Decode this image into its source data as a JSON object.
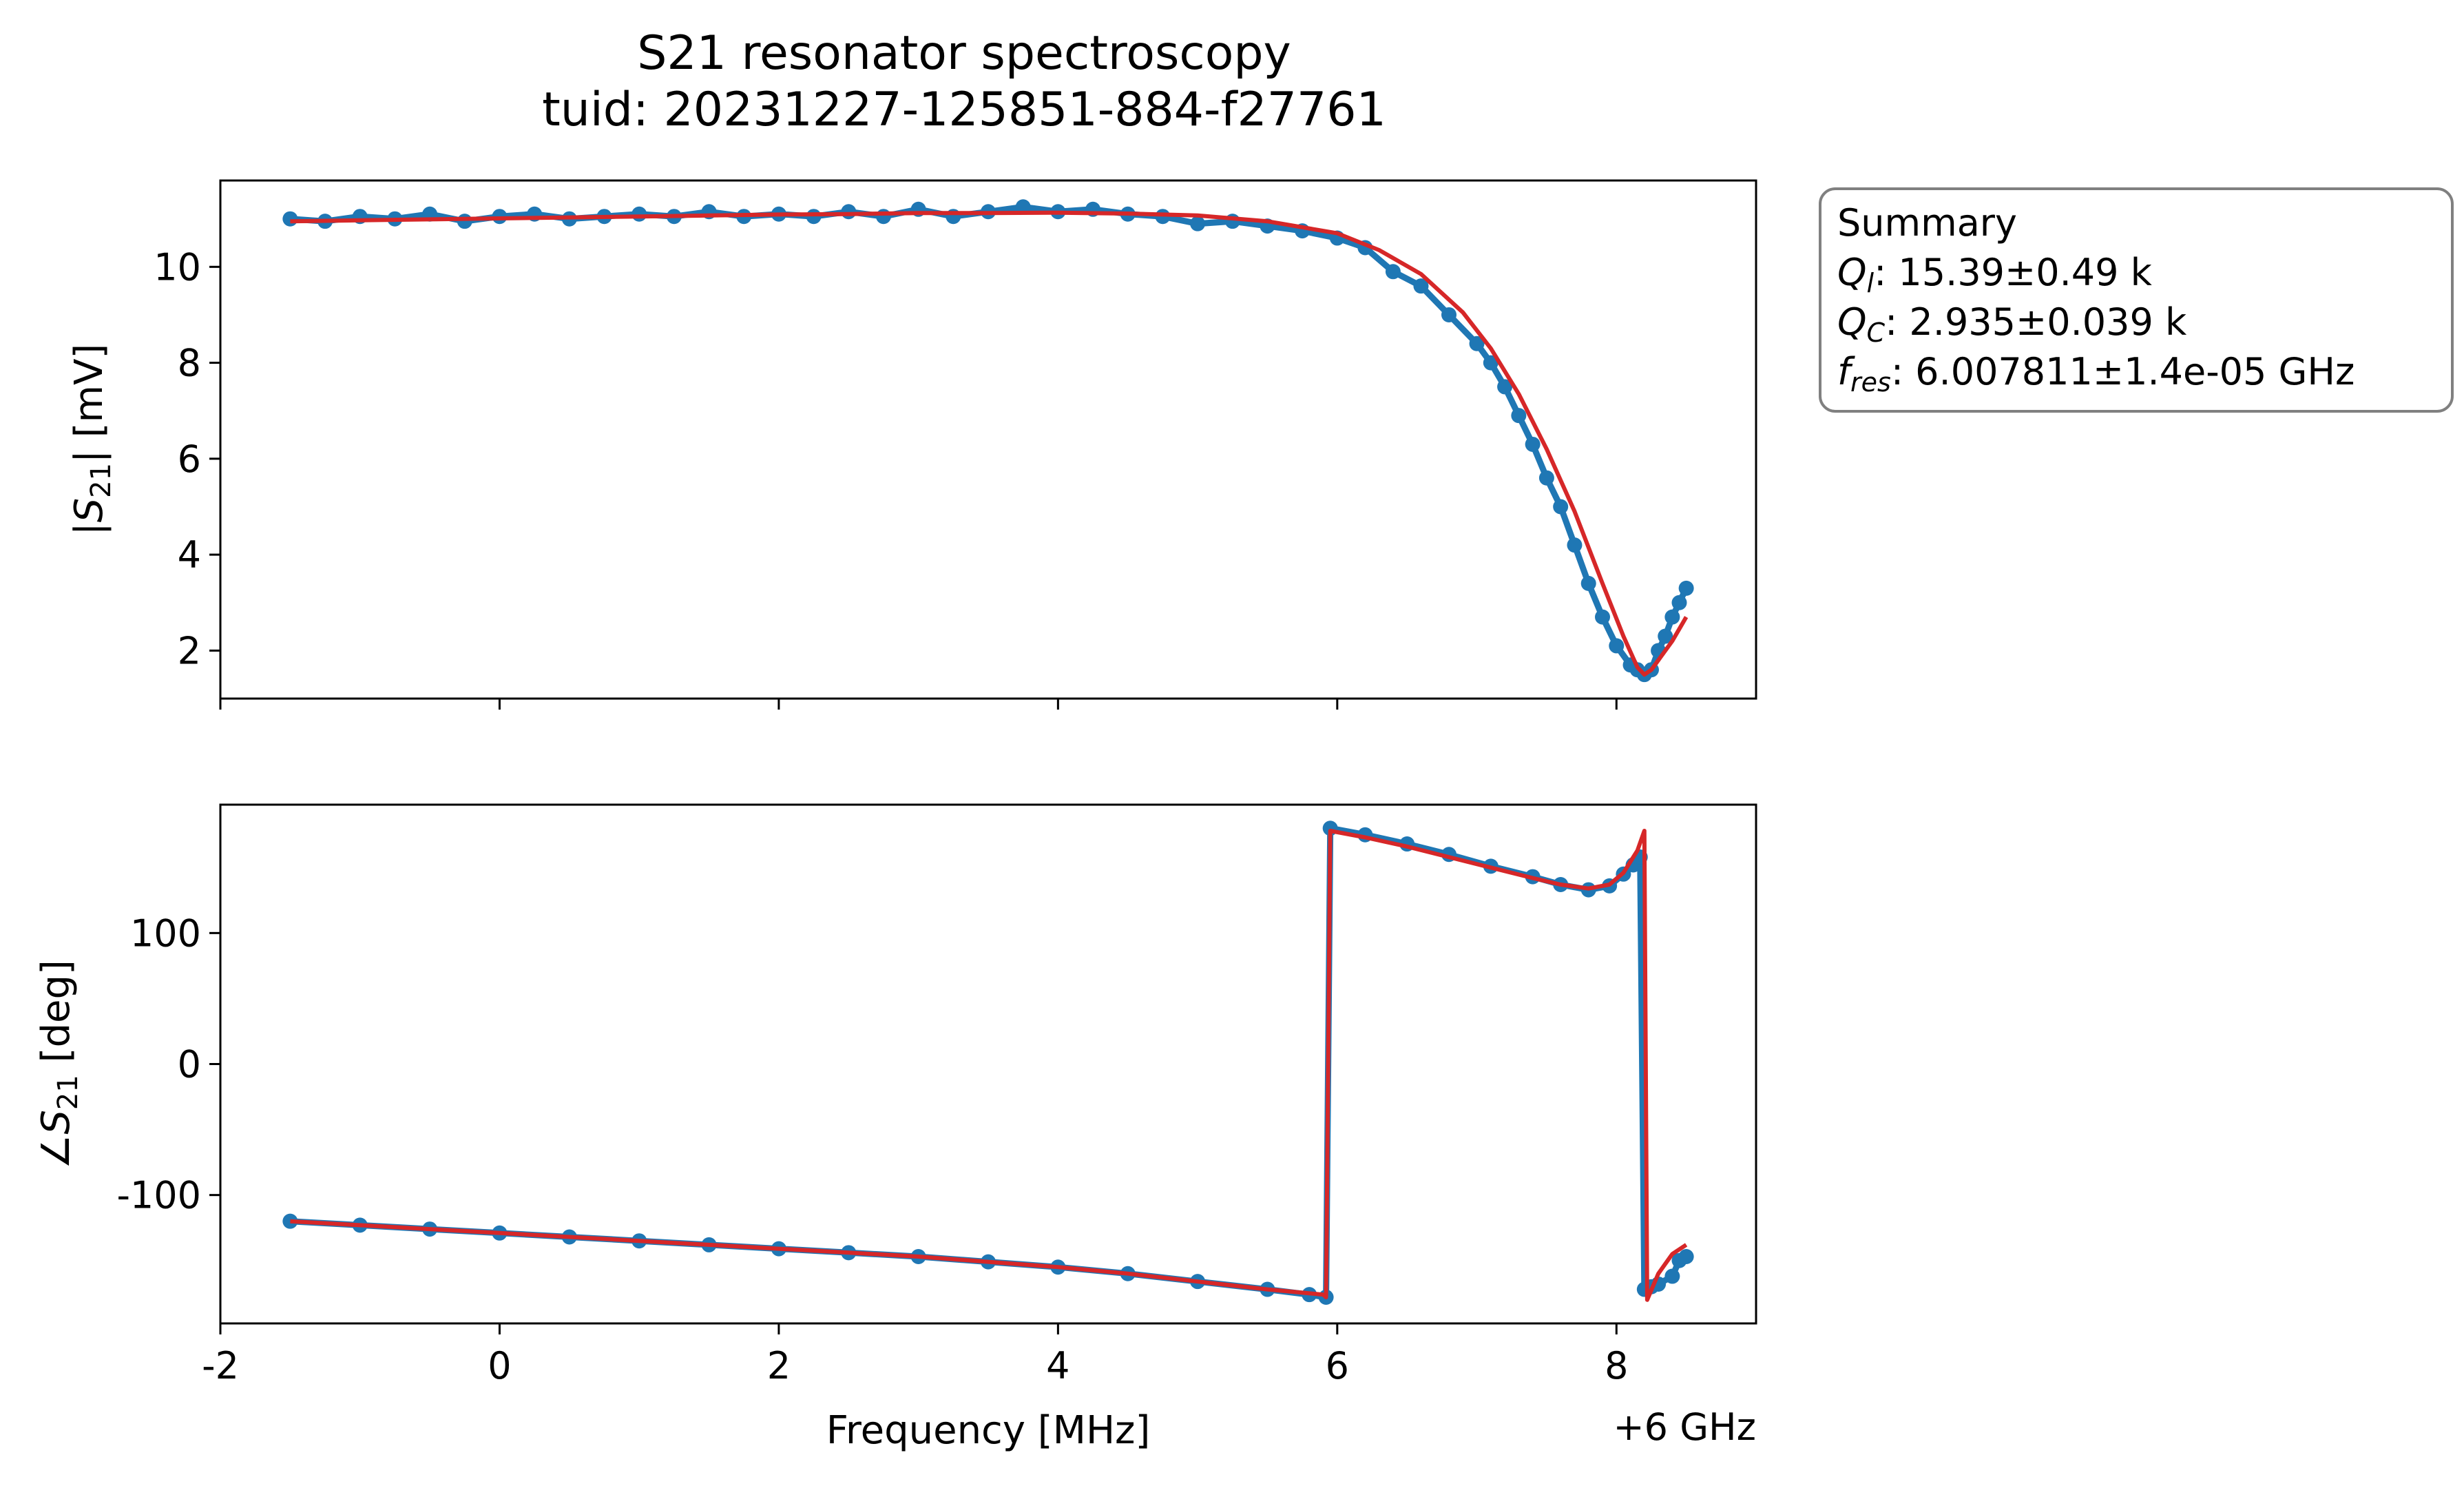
{
  "figure": {
    "title_line1": "S21 resonator spectroscopy",
    "title_line2": "tuid: 20231227-125851-884-f27761",
    "offset_label": "+6 GHz"
  },
  "summary": {
    "heading": "Summary",
    "ql_symbol": "Q",
    "ql_sub": "l",
    "ql_value": ": 15.39±0.49 k",
    "qc_symbol": "Q",
    "qc_sub": "C",
    "qc_value": ": 2.935±0.039 k",
    "fres_symbol": "f",
    "fres_sub": "res",
    "fres_value": ": 6.007811±1.4e-05 GHz"
  },
  "chart_data": [
    {
      "type": "scatter",
      "xlabel": "",
      "ylabel": "|S21| [mV]",
      "xlim": [
        -2,
        9
      ],
      "ylim": [
        1,
        11.8
      ],
      "xticks": [
        "-2",
        "0",
        "2",
        "4",
        "6",
        "8"
      ],
      "yticks": [
        "2",
        "4",
        "6",
        "8",
        "10"
      ],
      "ytick_values": [
        2,
        4,
        6,
        8,
        10
      ],
      "xticklabels_visible": false,
      "series": [
        {
          "style": "markers-with-line",
          "color": "#1f77b4",
          "x": [
            -1.5,
            -1.25,
            -1.0,
            -0.75,
            -0.5,
            -0.25,
            0.0,
            0.25,
            0.5,
            0.75,
            1.0,
            1.25,
            1.5,
            1.75,
            2.0,
            2.25,
            2.5,
            2.75,
            3.0,
            3.25,
            3.5,
            3.75,
            4.0,
            4.25,
            4.5,
            4.75,
            5.0,
            5.25,
            5.5,
            5.75,
            6.0,
            6.2,
            6.4,
            6.6,
            6.8,
            7.0,
            7.1,
            7.2,
            7.3,
            7.4,
            7.5,
            7.6,
            7.7,
            7.8,
            7.9,
            8.0,
            8.1,
            8.15,
            8.2,
            8.25,
            8.3,
            8.35,
            8.4,
            8.45,
            8.5
          ],
          "y": [
            11.0,
            10.95,
            11.05,
            11.0,
            11.1,
            10.95,
            11.05,
            11.1,
            11.0,
            11.05,
            11.1,
            11.05,
            11.15,
            11.05,
            11.1,
            11.05,
            11.15,
            11.05,
            11.2,
            11.05,
            11.15,
            11.25,
            11.15,
            11.2,
            11.1,
            11.05,
            10.9,
            10.95,
            10.85,
            10.75,
            10.6,
            10.4,
            9.9,
            9.6,
            9.0,
            8.4,
            8.0,
            7.5,
            6.9,
            6.3,
            5.6,
            5.0,
            4.2,
            3.4,
            2.7,
            2.1,
            1.7,
            1.6,
            1.5,
            1.6,
            2.0,
            2.3,
            2.7,
            3.0,
            3.3
          ]
        },
        {
          "style": "fit-line",
          "color": "#d62728",
          "x": [
            -1.5,
            -1.0,
            -0.5,
            0.0,
            0.5,
            1.0,
            1.5,
            2.0,
            2.5,
            3.0,
            3.5,
            4.0,
            4.5,
            5.0,
            5.5,
            6.0,
            6.3,
            6.6,
            6.9,
            7.1,
            7.3,
            7.5,
            7.7,
            7.9,
            8.05,
            8.15,
            8.2,
            8.25,
            8.3,
            8.4,
            8.5
          ],
          "y": [
            10.95,
            10.97,
            10.99,
            11.01,
            11.03,
            11.05,
            11.07,
            11.09,
            11.1,
            11.12,
            11.12,
            11.13,
            11.11,
            11.07,
            10.95,
            10.7,
            10.35,
            9.85,
            9.05,
            8.3,
            7.35,
            6.2,
            4.9,
            3.4,
            2.3,
            1.65,
            1.5,
            1.6,
            1.8,
            2.2,
            2.7
          ]
        }
      ]
    },
    {
      "type": "scatter",
      "xlabel": "Frequency [MHz]",
      "ylabel": "∠S21 [deg]",
      "xlim": [
        -2,
        9
      ],
      "ylim": [
        -198,
        198
      ],
      "xticks": [
        "-2",
        "0",
        "2",
        "4",
        "6",
        "8"
      ],
      "xtick_values": [
        -2,
        0,
        2,
        4,
        6,
        8
      ],
      "yticks": [
        "-100",
        "0",
        "100"
      ],
      "ytick_values": [
        -100,
        0,
        100
      ],
      "series": [
        {
          "style": "markers-with-line",
          "color": "#1f77b4",
          "x": [
            -1.5,
            -1.0,
            -0.5,
            0.0,
            0.5,
            1.0,
            1.5,
            2.0,
            2.5,
            3.0,
            3.5,
            4.0,
            4.5,
            5.0,
            5.5,
            5.8,
            5.92,
            5.95,
            6.2,
            6.5,
            6.8,
            7.1,
            7.4,
            7.6,
            7.8,
            7.95,
            8.05,
            8.12,
            8.17,
            8.2,
            8.25,
            8.3,
            8.4,
            8.45,
            8.5
          ],
          "y": [
            -120,
            -123,
            -126,
            -129,
            -132,
            -135,
            -138,
            -141,
            -144,
            -147,
            -151,
            -155,
            -160,
            -166,
            -172,
            -176,
            -178,
            180,
            175,
            168,
            160,
            151,
            143,
            137,
            133,
            136,
            145,
            152,
            158,
            -172,
            -170,
            -168,
            -162,
            -150,
            -147
          ]
        },
        {
          "style": "fit-line",
          "color": "#d62728",
          "x": [
            -1.5,
            -1.0,
            -0.5,
            0.0,
            0.5,
            1.0,
            1.5,
            2.0,
            2.5,
            3.0,
            3.5,
            4.0,
            4.5,
            5.0,
            5.5,
            5.9,
            5.92,
            5.95,
            6.2,
            6.5,
            6.8,
            7.1,
            7.4,
            7.6,
            7.8,
            7.95,
            8.05,
            8.15,
            8.2,
            8.22,
            8.3,
            8.4,
            8.5
          ],
          "y": [
            -120,
            -123,
            -126,
            -129,
            -132,
            -135,
            -138,
            -141,
            -144,
            -147,
            -151,
            -155,
            -160,
            -166,
            -172,
            -176,
            -178,
            178,
            173,
            166,
            158,
            150,
            142,
            137,
            134,
            137,
            146,
            163,
            178,
            -180,
            -160,
            -145,
            -138
          ]
        }
      ]
    }
  ]
}
